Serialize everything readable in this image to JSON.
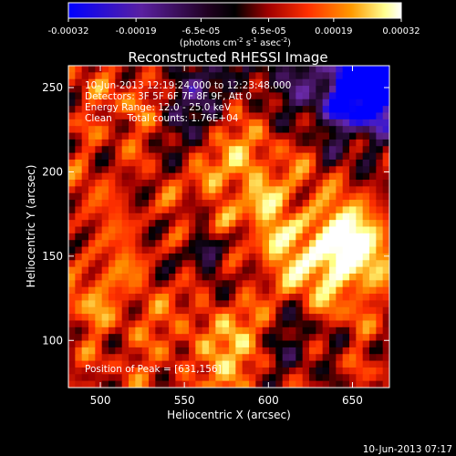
{
  "colorbar": {
    "ticks": [
      "-0.00032",
      "-0.00019",
      "-6.5e-05",
      "6.5e-05",
      "0.00019",
      "0.00032"
    ],
    "unit_main": "(photons cm",
    "unit_exp1": "-2",
    "unit_mid": " s",
    "unit_exp2": "-1",
    "unit_mid2": " asec",
    "unit_exp3": "-2",
    "unit_end": ")"
  },
  "chart_data": {
    "type": "heatmap",
    "title": "Reconstructed RHESSI Image",
    "xlabel": "Heliocentric X (arcsec)",
    "ylabel": "Heliocentric Y (arcsec)",
    "xlim": [
      481,
      672
    ],
    "ylim": [
      72,
      263
    ],
    "xticks": [
      500,
      550,
      600,
      650
    ],
    "yticks": [
      100,
      150,
      200,
      250
    ],
    "vmin": -0.00032,
    "vmax": 0.00032,
    "colormap": [
      "#0000ff",
      "#6a2aa8",
      "#3c1050",
      "#000000",
      "#a00000",
      "#ff3000",
      "#ff9000",
      "#ffff80",
      "#ffffff"
    ],
    "peak": {
      "x": 631,
      "y": 156
    },
    "annotations": [
      "10-Jun-2013 12:19:24.000 to 12:23:48.000",
      "Detectors: 3F 5F 6F 7F 8F 9F, Att 0",
      "Energy Range: 12.0 - 25.0 keV",
      "Clean     Total counts: 1.76E+04"
    ],
    "peak_label": "Position of Peak = [631,156]"
  },
  "footer": {
    "timestamp": "10-Jun-2013 07:17"
  }
}
